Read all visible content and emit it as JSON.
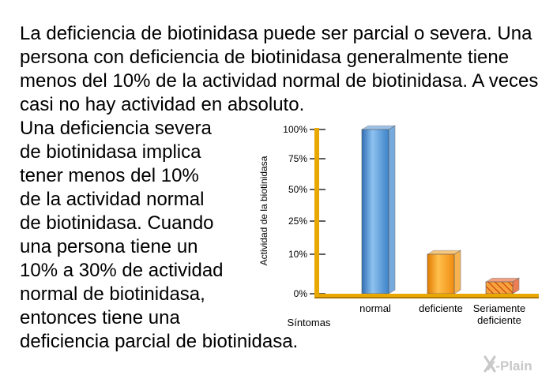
{
  "text": {
    "top": "La deficiencia de biotinidasa puede ser parcial o severa. Una persona con deficiencia de biotinidasa generalmente tiene menos del 10% de la actividad normal de biotinidasa. A veces casi no hay actividad en absoluto.",
    "left": "Una deficiencia severa\nde biotinidasa implica\ntener menos del 10%\nde la actividad normal\nde biotinidasa. Cuando\nuna persona tiene un\n10% a 30% de actividad\nnormal de biotinidasa,\nentonces tiene una",
    "bottom": "deficiencia parcial de biotinidasa."
  },
  "logo": {
    "text": "X-Plain",
    "icon": "xplain-logo-icon"
  },
  "chart_data": {
    "type": "bar",
    "title": "",
    "ylabel": "Actividad de la biotinidasa",
    "xlabel": "Síntomas",
    "ylim": [
      0,
      100
    ],
    "ticks": [
      {
        "value": 0,
        "label": "0%"
      },
      {
        "value": 10,
        "label": "10%"
      },
      {
        "value": 25,
        "label": "25%"
      },
      {
        "value": 50,
        "label": "50%"
      },
      {
        "value": 75,
        "label": "75%"
      },
      {
        "value": 100,
        "label": "100%"
      }
    ],
    "categories": [
      [
        "normal"
      ],
      [
        "deficiente"
      ],
      [
        "Seriamente",
        "deficiente"
      ]
    ],
    "values": [
      100,
      10,
      3
    ],
    "colors": [
      "#4a8fd4",
      "#f39a16",
      "#e8541a"
    ],
    "hatched": [
      false,
      false,
      true
    ],
    "axis_color": "#e8a800"
  }
}
